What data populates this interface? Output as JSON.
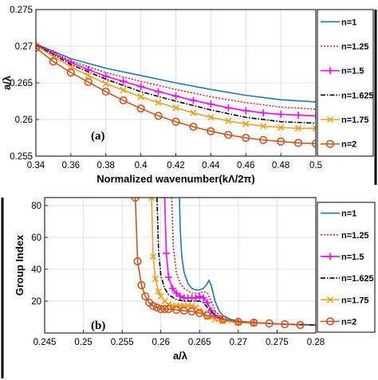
{
  "chart_data": [
    {
      "type": "line",
      "panel_label": "(a)",
      "xlabel": "Normalized wavenumber(kΛ/2π)",
      "ylabel": "a/λ",
      "xlim": [
        0.34,
        0.5
      ],
      "ylim": [
        0.255,
        0.275
      ],
      "xticks": [
        "0.34",
        "0.36",
        "0.38",
        "0.4",
        "0.42",
        "0.44",
        "0.46",
        "0.48",
        "0.5"
      ],
      "yticks": [
        "0.255",
        "0.26",
        "0.265",
        "0.27",
        "0.275"
      ],
      "grid": true,
      "legend": "right",
      "series": [
        {
          "name": "n=1",
          "color": "#1f77b4",
          "style": "solid",
          "marker": "none",
          "x": [
            0.34,
            0.36,
            0.38,
            0.4,
            0.42,
            0.44,
            0.46,
            0.48,
            0.5
          ],
          "y": [
            0.2703,
            0.2683,
            0.267,
            0.266,
            0.265,
            0.2641,
            0.2633,
            0.2627,
            0.2624
          ]
        },
        {
          "name": "n=1.25",
          "color": "#d62728",
          "style": "dotted",
          "marker": "none",
          "x": [
            0.34,
            0.36,
            0.38,
            0.4,
            0.42,
            0.44,
            0.46,
            0.48,
            0.5
          ],
          "y": [
            0.2703,
            0.268,
            0.2664,
            0.2652,
            0.2641,
            0.2631,
            0.2623,
            0.2617,
            0.2614
          ]
        },
        {
          "name": "n=1.5",
          "color": "#ff00ff",
          "style": "solid",
          "marker": "plus",
          "x": [
            0.34,
            0.35,
            0.36,
            0.37,
            0.38,
            0.39,
            0.4,
            0.41,
            0.42,
            0.43,
            0.44,
            0.45,
            0.46,
            0.47,
            0.48,
            0.49,
            0.5
          ],
          "y": [
            0.2702,
            0.269,
            0.2678,
            0.2668,
            0.2659,
            0.2652,
            0.2645,
            0.2638,
            0.2632,
            0.2626,
            0.2621,
            0.2616,
            0.2612,
            0.2609,
            0.2607,
            0.2606,
            0.2605
          ]
        },
        {
          "name": "n=1.625",
          "color": "#000000",
          "style": "dashdot",
          "marker": "none",
          "x": [
            0.34,
            0.36,
            0.38,
            0.4,
            0.42,
            0.44,
            0.46,
            0.48,
            0.5
          ],
          "y": [
            0.2702,
            0.2675,
            0.2655,
            0.2638,
            0.2625,
            0.2613,
            0.2603,
            0.2597,
            0.2595
          ]
        },
        {
          "name": "n=1.75",
          "color": "#f0a020",
          "style": "solid",
          "marker": "x",
          "x": [
            0.34,
            0.35,
            0.36,
            0.37,
            0.38,
            0.39,
            0.4,
            0.41,
            0.42,
            0.43,
            0.44,
            0.45,
            0.46,
            0.47,
            0.48,
            0.49,
            0.5
          ],
          "y": [
            0.2701,
            0.2686,
            0.2672,
            0.266,
            0.2649,
            0.264,
            0.2631,
            0.2623,
            0.2616,
            0.2609,
            0.2603,
            0.2598,
            0.2594,
            0.2591,
            0.2589,
            0.2588,
            0.2588
          ]
        },
        {
          "name": "n=2",
          "color": "#d2541e",
          "style": "solid",
          "marker": "circle",
          "x": [
            0.34,
            0.35,
            0.36,
            0.37,
            0.38,
            0.39,
            0.4,
            0.41,
            0.42,
            0.43,
            0.44,
            0.45,
            0.46,
            0.47,
            0.48,
            0.49,
            0.5
          ],
          "y": [
            0.2698,
            0.2679,
            0.2664,
            0.2651,
            0.2638,
            0.2626,
            0.2615,
            0.2605,
            0.2597,
            0.259,
            0.2584,
            0.2579,
            0.2575,
            0.2572,
            0.257,
            0.2568,
            0.2567
          ]
        }
      ]
    },
    {
      "type": "line",
      "panel_label": "(b)",
      "xlabel": "a/λ",
      "ylabel": "Group Index",
      "xlim": [
        0.245,
        0.28
      ],
      "ylim": [
        0,
        85
      ],
      "xticks": [
        "0.245",
        "0.25",
        "0.255",
        "0.26",
        "0.265",
        "0.27",
        "0.275",
        "0.28"
      ],
      "yticks": [
        "20",
        "40",
        "60",
        "80"
      ],
      "grid": true,
      "legend": "right",
      "series": [
        {
          "name": "n=1",
          "color": "#1f77b4",
          "style": "solid",
          "marker": "none",
          "x": [
            0.2624,
            0.2625,
            0.2627,
            0.263,
            0.2635,
            0.264,
            0.2645,
            0.265,
            0.2655,
            0.266,
            0.2662,
            0.2665,
            0.267,
            0.2675,
            0.268,
            0.269,
            0.27,
            0.271,
            0.272,
            0.274,
            0.276,
            0.278,
            0.28
          ],
          "y": [
            85,
            65,
            48,
            38,
            31,
            28,
            27,
            27,
            28,
            31,
            33,
            30,
            20,
            14,
            11,
            8.5,
            7.5,
            7,
            6.5,
            6,
            5.5,
            5.3,
            5
          ]
        },
        {
          "name": "n=1.25",
          "color": "#d62728",
          "style": "dotted",
          "marker": "none",
          "x": [
            0.2614,
            0.2616,
            0.262,
            0.2625,
            0.263,
            0.264,
            0.265,
            0.2655,
            0.266,
            0.2665,
            0.267,
            0.268,
            0.27,
            0.272,
            0.276,
            0.28
          ],
          "y": [
            85,
            55,
            38,
            31,
            28,
            25,
            25,
            26,
            25,
            20,
            14,
            9,
            7,
            6.5,
            5.5,
            5
          ]
        },
        {
          "name": "n=1.5",
          "color": "#ff00ff",
          "style": "solid",
          "marker": "plus",
          "x": [
            0.2605,
            0.2607,
            0.261,
            0.2615,
            0.262,
            0.2625,
            0.263,
            0.2635,
            0.264,
            0.2645,
            0.265,
            0.2655,
            0.266,
            0.2665,
            0.267,
            0.268,
            0.27,
            0.272
          ],
          "y": [
            85,
            50,
            35,
            28,
            25,
            23,
            22,
            22,
            22,
            22,
            23,
            22,
            19,
            14,
            11,
            8.5,
            7,
            6.5
          ]
        },
        {
          "name": "n=1.625",
          "color": "#000000",
          "style": "dashdot",
          "marker": "none",
          "x": [
            0.2595,
            0.2597,
            0.26,
            0.2605,
            0.261,
            0.262,
            0.263,
            0.264,
            0.265,
            0.2655,
            0.266,
            0.267,
            0.268,
            0.27,
            0.276,
            0.28
          ],
          "y": [
            85,
            52,
            36,
            28,
            24,
            21,
            20,
            20,
            20,
            19,
            16,
            11,
            8.5,
            7,
            5.5,
            5
          ]
        },
        {
          "name": "n=1.75",
          "color": "#f0a020",
          "style": "solid",
          "marker": "x",
          "x": [
            0.2588,
            0.259,
            0.2593,
            0.2597,
            0.26,
            0.2605,
            0.261,
            0.2615,
            0.262,
            0.2625,
            0.263,
            0.2635,
            0.264,
            0.2645,
            0.265,
            0.2655,
            0.266,
            0.267,
            0.268,
            0.27,
            0.272
          ],
          "y": [
            85,
            48,
            34,
            26,
            23,
            20,
            18,
            17,
            17,
            17,
            17,
            17,
            17,
            16,
            14,
            12,
            10,
            8.5,
            7.5,
            6.5,
            6
          ]
        },
        {
          "name": "n=2",
          "color": "#d2541e",
          "style": "solid",
          "marker": "circle",
          "x": [
            0.2567,
            0.257,
            0.2575,
            0.258,
            0.2585,
            0.259,
            0.2595,
            0.26,
            0.2605,
            0.261,
            0.262,
            0.263,
            0.264,
            0.265,
            0.266,
            0.268,
            0.27,
            0.272,
            0.274,
            0.276,
            0.278
          ],
          "y": [
            85,
            45,
            30,
            23,
            19,
            17,
            16,
            15,
            15,
            15,
            14.5,
            14,
            13.5,
            12.5,
            11,
            8.5,
            7,
            6.5,
            6,
            5.5,
            5
          ]
        }
      ]
    }
  ]
}
